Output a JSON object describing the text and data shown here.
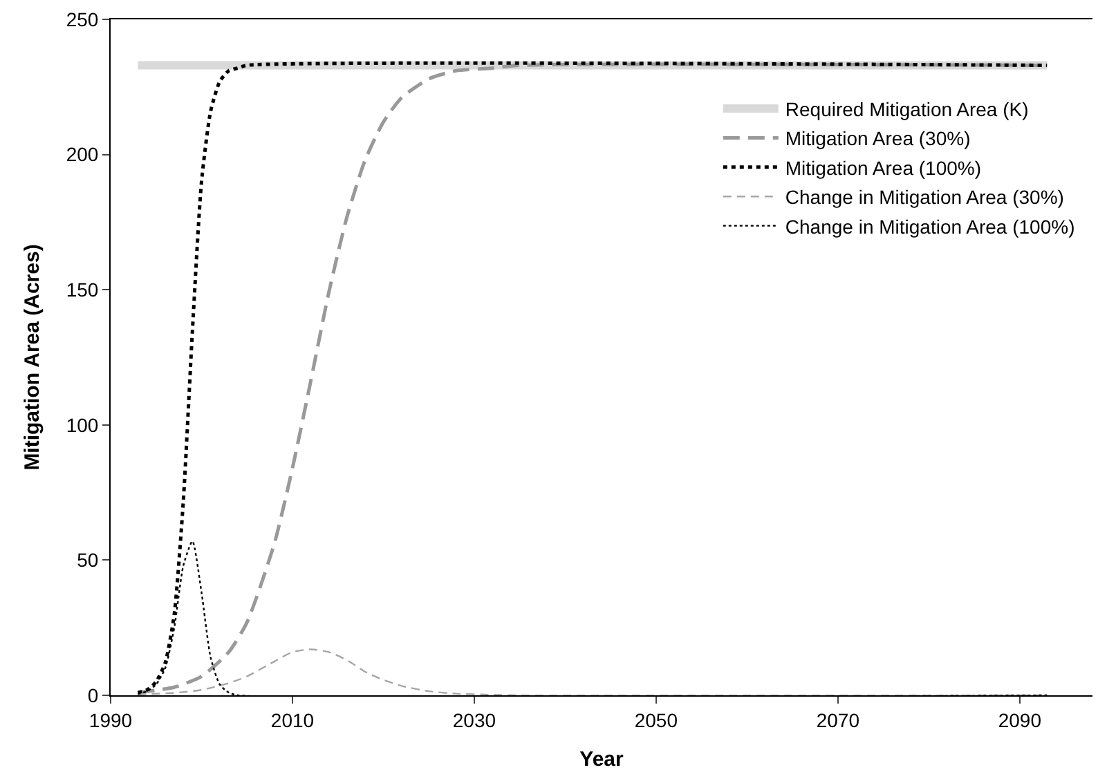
{
  "chart_data": {
    "type": "line",
    "xlabel": "Year",
    "ylabel": "Mitigation Area (Acres)",
    "xlim": [
      1990,
      2098
    ],
    "xticks": [
      1990,
      2010,
      2030,
      2050,
      2070,
      2090
    ],
    "ylim": [
      0,
      250
    ],
    "yticks": [
      0,
      50,
      100,
      150,
      200,
      250
    ],
    "grid": false,
    "legend": "top right",
    "marker": "none",
    "series": [
      {
        "name": "Required Mitigation Area (K)",
        "color": "#d9d9d9",
        "line_style": "solid",
        "x": [
          1993,
          2093
        ],
        "values": [
          233,
          233
        ]
      },
      {
        "name": "Mitigation Area (30%)",
        "color": "#999999",
        "line_style": "dashed",
        "x": [
          1993,
          1997,
          2000,
          2003,
          2005,
          2008,
          2010,
          2012,
          2014,
          2016,
          2018,
          2020,
          2022,
          2025,
          2028,
          2032,
          2035,
          2093
        ],
        "values": [
          1,
          3,
          7,
          16,
          27,
          56,
          84,
          116,
          149,
          177,
          198,
          212,
          221,
          228,
          231,
          232,
          233,
          233
        ]
      },
      {
        "name": "Mitigation Area (100%)",
        "color": "#000000",
        "line_style": "dotted",
        "x": [
          1993,
          1994,
          1995,
          1996,
          1997,
          1998,
          1999,
          2000,
          2001,
          2002,
          2003,
          2004,
          2005,
          2093
        ],
        "values": [
          1,
          2,
          5,
          12,
          30,
          72,
          135,
          190,
          216,
          227,
          231,
          232,
          233,
          233
        ]
      },
      {
        "name": "Change in Mitigation Area (30%)",
        "color": "#a6a6a6",
        "line_style": "dashed",
        "x": [
          1993,
          1997,
          2000,
          2003,
          2005,
          2008,
          2010,
          2012,
          2014,
          2016,
          2018,
          2020,
          2022,
          2025,
          2028,
          2032,
          2035,
          2093
        ],
        "values": [
          0.3,
          0.9,
          2,
          4.5,
          7,
          12.5,
          16,
          17,
          16,
          13,
          8.7,
          5.7,
          3.5,
          1.5,
          0.6,
          0.2,
          0,
          0
        ]
      },
      {
        "name": "Change in Mitigation Area (100%)",
        "color": "#000000",
        "line_style": "dotted",
        "x": [
          1993,
          1994,
          1995,
          1996,
          1997,
          1998,
          1999,
          2000,
          2001,
          2002,
          2003,
          2004,
          2093
        ],
        "values": [
          0.5,
          1.5,
          4,
          10,
          25,
          48,
          57,
          38,
          14,
          4,
          1,
          0,
          0
        ]
      }
    ]
  }
}
